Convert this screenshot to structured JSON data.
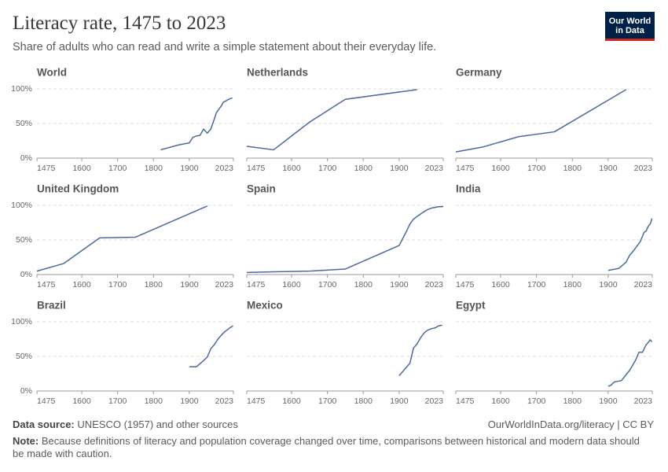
{
  "title": "Literacy rate, 1475 to 2023",
  "subtitle": "Share of adults who can read and write a simple statement about their everyday life.",
  "logo": "Our World in Data",
  "source_label": "Data source:",
  "source": "UNESCO (1957) and other sources",
  "credit": "OurWorldInData.org/literacy | CC BY",
  "note_label": "Note:",
  "note": "Because definitions of literacy and population coverage changed over time, comparisons between historical and modern data should be made with caution.",
  "chart_data": [
    {
      "type": "line",
      "title": "World",
      "color": "#4c6a9c",
      "grid": true,
      "xlim": [
        1475,
        2023
      ],
      "ylim": [
        0,
        100
      ],
      "xticks": [
        1475,
        1600,
        1700,
        1800,
        1900,
        2023
      ],
      "yticks": [
        {
          "value": 0,
          "label": "0%"
        },
        {
          "value": 50,
          "label": "50%"
        },
        {
          "value": 100,
          "label": "100%"
        }
      ],
      "x": [
        1820,
        1870,
        1900,
        1910,
        1920,
        1930,
        1940,
        1950,
        1960,
        1970,
        1975,
        1980,
        1990,
        1995,
        2000,
        2010,
        2015,
        2020
      ],
      "values": [
        12,
        19,
        22,
        30,
        32,
        33,
        42,
        36,
        42,
        57,
        65,
        69,
        76,
        81,
        82,
        85,
        86,
        87
      ]
    },
    {
      "type": "line",
      "title": "Netherlands",
      "color": "#4c6a9c",
      "grid": true,
      "xlim": [
        1475,
        2023
      ],
      "ylim": [
        0,
        100
      ],
      "xticks": [
        1475,
        1600,
        1700,
        1800,
        1900,
        2023
      ],
      "yticks": [
        0,
        50,
        100
      ],
      "x": [
        1475,
        1550,
        1650,
        1750,
        1950
      ],
      "values": [
        17,
        12,
        52,
        85,
        99
      ]
    },
    {
      "type": "line",
      "title": "Germany",
      "color": "#4c6a9c",
      "grid": true,
      "xlim": [
        1475,
        2023
      ],
      "ylim": [
        0,
        100
      ],
      "xticks": [
        1475,
        1600,
        1700,
        1800,
        1900,
        2023
      ],
      "yticks": [
        0,
        50,
        100
      ],
      "x": [
        1475,
        1550,
        1650,
        1750,
        1950
      ],
      "values": [
        9,
        16,
        31,
        38,
        99
      ]
    },
    {
      "type": "line",
      "title": "United Kingdom",
      "color": "#4c6a9c",
      "grid": true,
      "xlim": [
        1475,
        2023
      ],
      "ylim": [
        0,
        100
      ],
      "xticks": [
        1475,
        1600,
        1700,
        1800,
        1900,
        2023
      ],
      "yticks": [
        {
          "value": 0,
          "label": "0%"
        },
        {
          "value": 50,
          "label": "50%"
        },
        {
          "value": 100,
          "label": "100%"
        }
      ],
      "x": [
        1475,
        1550,
        1650,
        1750,
        1950
      ],
      "values": [
        5,
        16,
        53,
        54,
        99
      ]
    },
    {
      "type": "line",
      "title": "Spain",
      "color": "#4c6a9c",
      "grid": true,
      "xlim": [
        1475,
        2023
      ],
      "ylim": [
        0,
        100
      ],
      "xticks": [
        1475,
        1600,
        1700,
        1800,
        1900,
        2023
      ],
      "yticks": [
        0,
        50,
        100
      ],
      "x": [
        1475,
        1550,
        1650,
        1750,
        1900,
        1910,
        1920,
        1930,
        1940,
        1950,
        1970,
        1980,
        1990,
        2000,
        2010,
        2020,
        2023
      ],
      "values": [
        3,
        4,
        5,
        8,
        42,
        52,
        62,
        73,
        80,
        84,
        91,
        94,
        96,
        97,
        98,
        98,
        99
      ]
    },
    {
      "type": "line",
      "title": "India",
      "color": "#4c6a9c",
      "grid": true,
      "xlim": [
        1475,
        2023
      ],
      "ylim": [
        0,
        100
      ],
      "xticks": [
        1475,
        1600,
        1700,
        1800,
        1900,
        2023
      ],
      "yticks": [
        0,
        50,
        100
      ],
      "x": [
        1900,
        1930,
        1950,
        1960,
        1970,
        1980,
        1990,
        2000,
        2006,
        2011,
        2018,
        2022
      ],
      "values": [
        6,
        9,
        18,
        28,
        34,
        41,
        48,
        61,
        63,
        69,
        74,
        81
      ]
    },
    {
      "type": "line",
      "title": "Brazil",
      "color": "#4c6a9c",
      "grid": true,
      "xlim": [
        1475,
        2023
      ],
      "ylim": [
        0,
        100
      ],
      "xticks": [
        1475,
        1600,
        1700,
        1800,
        1900,
        2023
      ],
      "yticks": [
        {
          "value": 0,
          "label": "0%"
        },
        {
          "value": 50,
          "label": "50%"
        },
        {
          "value": 100,
          "label": "100%"
        }
      ],
      "x": [
        1900,
        1920,
        1940,
        1950,
        1960,
        1970,
        1980,
        1990,
        2000,
        2010,
        2015,
        2022
      ],
      "values": [
        35,
        35,
        44,
        49,
        61,
        67,
        75,
        81,
        86,
        90,
        92,
        94
      ]
    },
    {
      "type": "line",
      "title": "Mexico",
      "color": "#4c6a9c",
      "grid": true,
      "xlim": [
        1475,
        2023
      ],
      "ylim": [
        0,
        100
      ],
      "xticks": [
        1475,
        1600,
        1700,
        1800,
        1900,
        2023
      ],
      "yticks": [
        0,
        50,
        100
      ],
      "x": [
        1900,
        1930,
        1940,
        1950,
        1960,
        1970,
        1980,
        1990,
        2000,
        2010,
        2020
      ],
      "values": [
        22,
        40,
        62,
        68,
        77,
        84,
        88,
        90,
        91,
        94,
        95
      ]
    },
    {
      "type": "line",
      "title": "Egypt",
      "color": "#4c6a9c",
      "grid": true,
      "xlim": [
        1475,
        2023
      ],
      "ylim": [
        0,
        100
      ],
      "xticks": [
        1475,
        1600,
        1700,
        1800,
        1900,
        2023
      ],
      "yticks": [
        0,
        50,
        100
      ],
      "x": [
        1900,
        1907,
        1917,
        1927,
        1937,
        1960,
        1976,
        1986,
        1996,
        2005,
        2013,
        2017,
        2022
      ],
      "values": [
        7,
        8,
        13,
        14,
        15,
        30,
        44,
        56,
        56,
        66,
        71,
        74,
        71
      ]
    }
  ]
}
